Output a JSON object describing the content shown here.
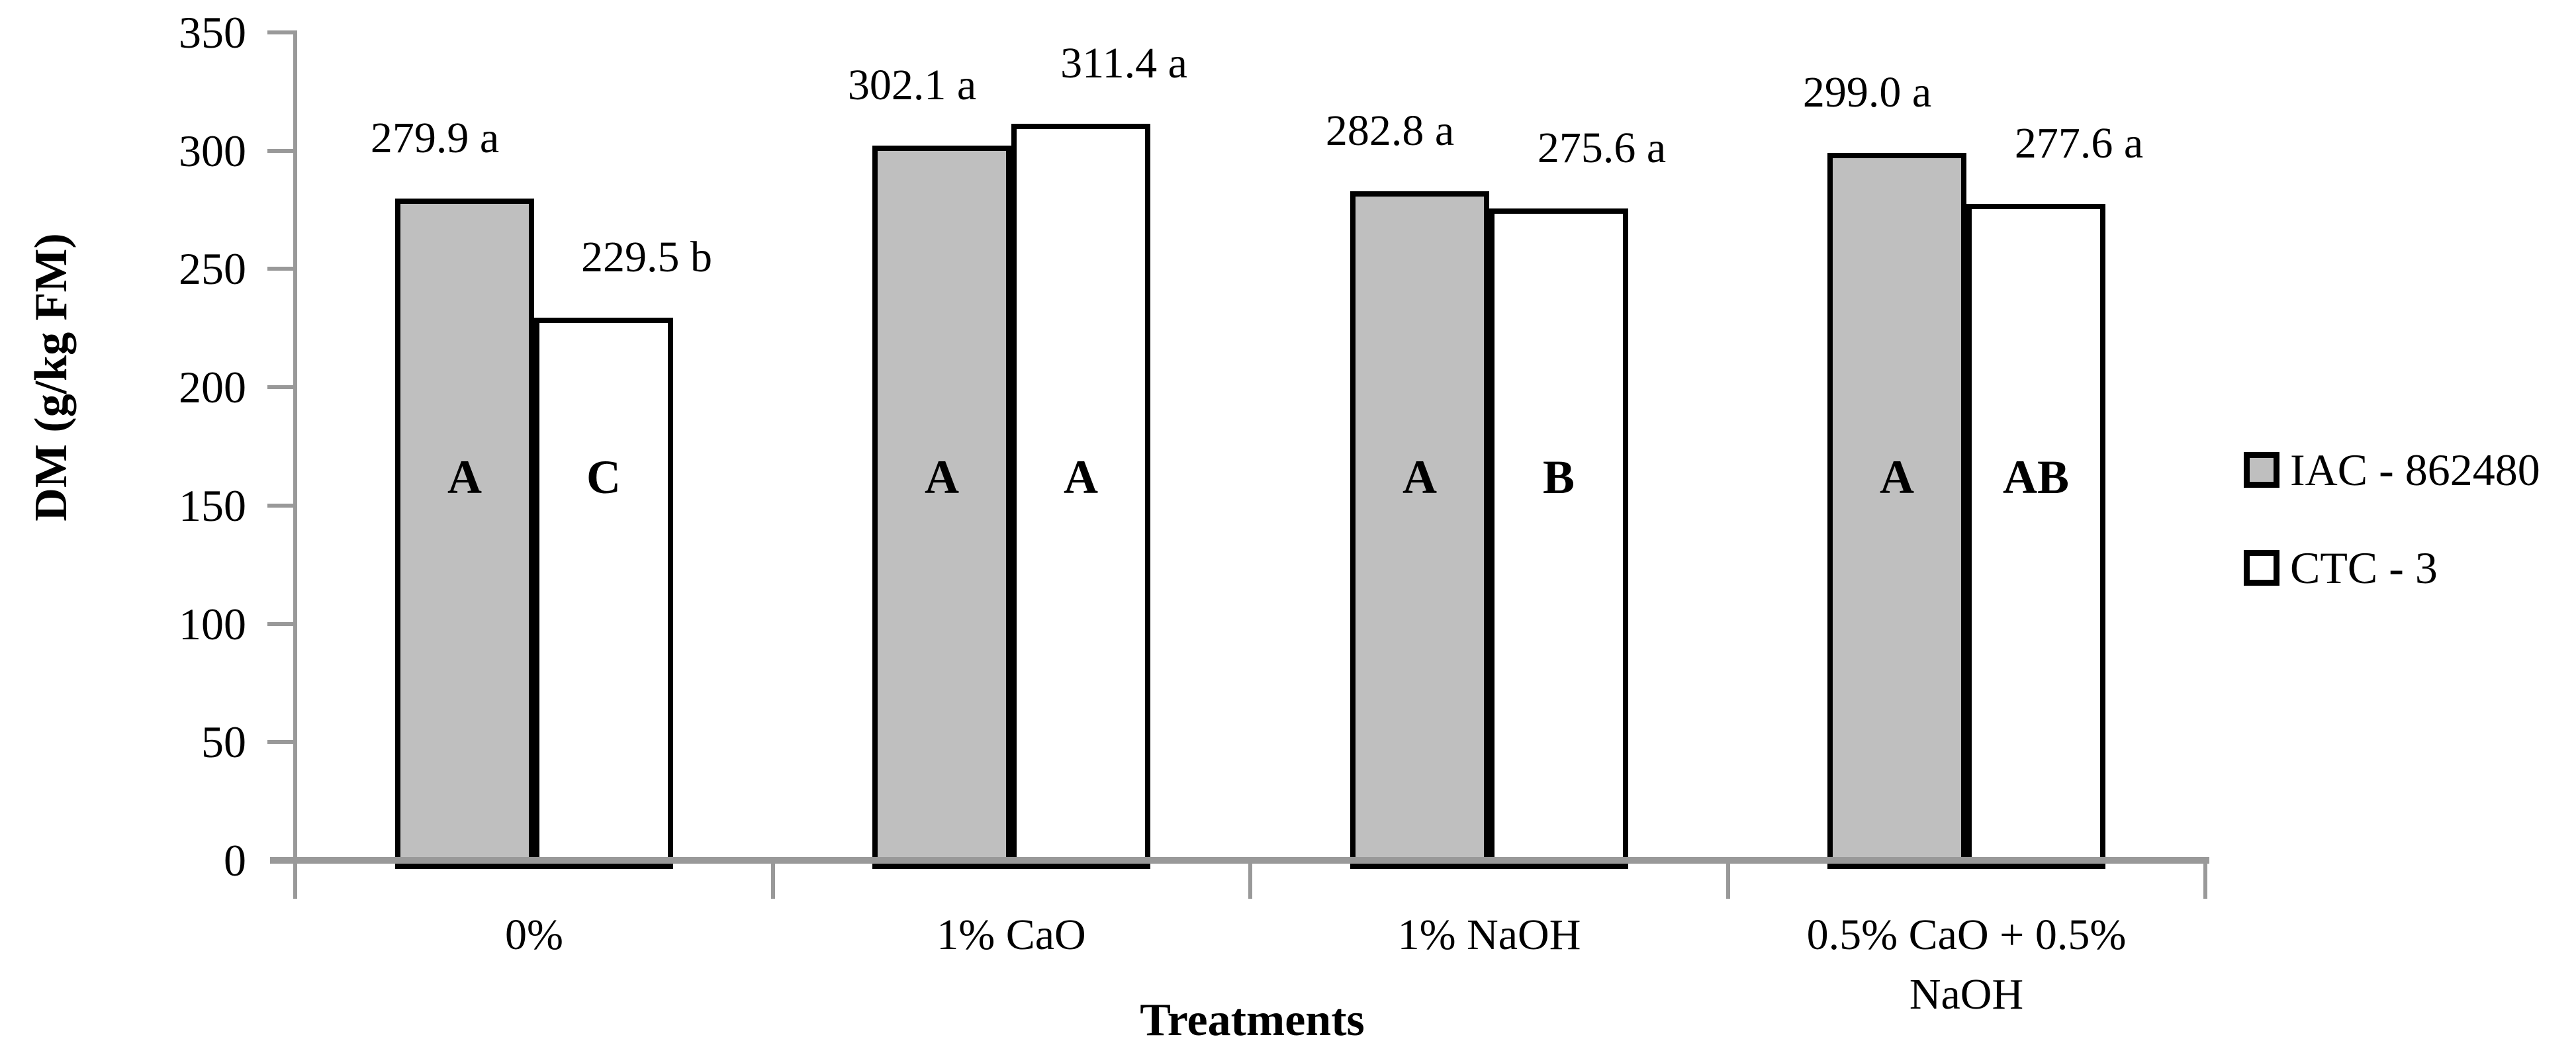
{
  "figure": {
    "background": "#ffffff",
    "axis_color": "#999999",
    "bar_border_color": "#000000",
    "gray_fill": "#bfbfbf",
    "white_fill": "#ffffff",
    "text_color": "#000000"
  },
  "chart_data": {
    "type": "bar",
    "title": "",
    "xlabel": "Treatments",
    "ylabel": "DM (g/kg FM)",
    "ylim": [
      0,
      350
    ],
    "ytick_step": 50,
    "yticks": [
      0,
      50,
      100,
      150,
      200,
      250,
      300,
      350
    ],
    "ytick_labels": [
      "0",
      "50",
      "100",
      "150",
      "200",
      "250",
      "300",
      "350"
    ],
    "grid": false,
    "legend_position": "right",
    "categories": [
      "0%",
      "1% CaO",
      "1% NaOH",
      "0.5% CaO + 0.5% NaOH"
    ],
    "category_display": [
      "0%",
      "1% CaO",
      "1% NaOH",
      "0.5% CaO + 0.5%\nNaOH"
    ],
    "series": [
      {
        "name": "IAC - 862480",
        "fill": "#bfbfbf",
        "values": [
          279.9,
          302.1,
          282.8,
          299.0
        ],
        "value_labels": [
          "279.9 a",
          "302.1 a",
          "282.8 a",
          "299.0 a"
        ],
        "bar_letters": [
          "A",
          "A",
          "A",
          "A"
        ]
      },
      {
        "name": "CTC - 3",
        "fill": "#ffffff",
        "values": [
          229.5,
          311.4,
          275.6,
          277.6
        ],
        "value_labels": [
          "229.5 b",
          "311.4 a",
          "275.6 a",
          "277.6 a"
        ],
        "bar_letters": [
          "C",
          "A",
          "B",
          "AB"
        ]
      }
    ]
  }
}
